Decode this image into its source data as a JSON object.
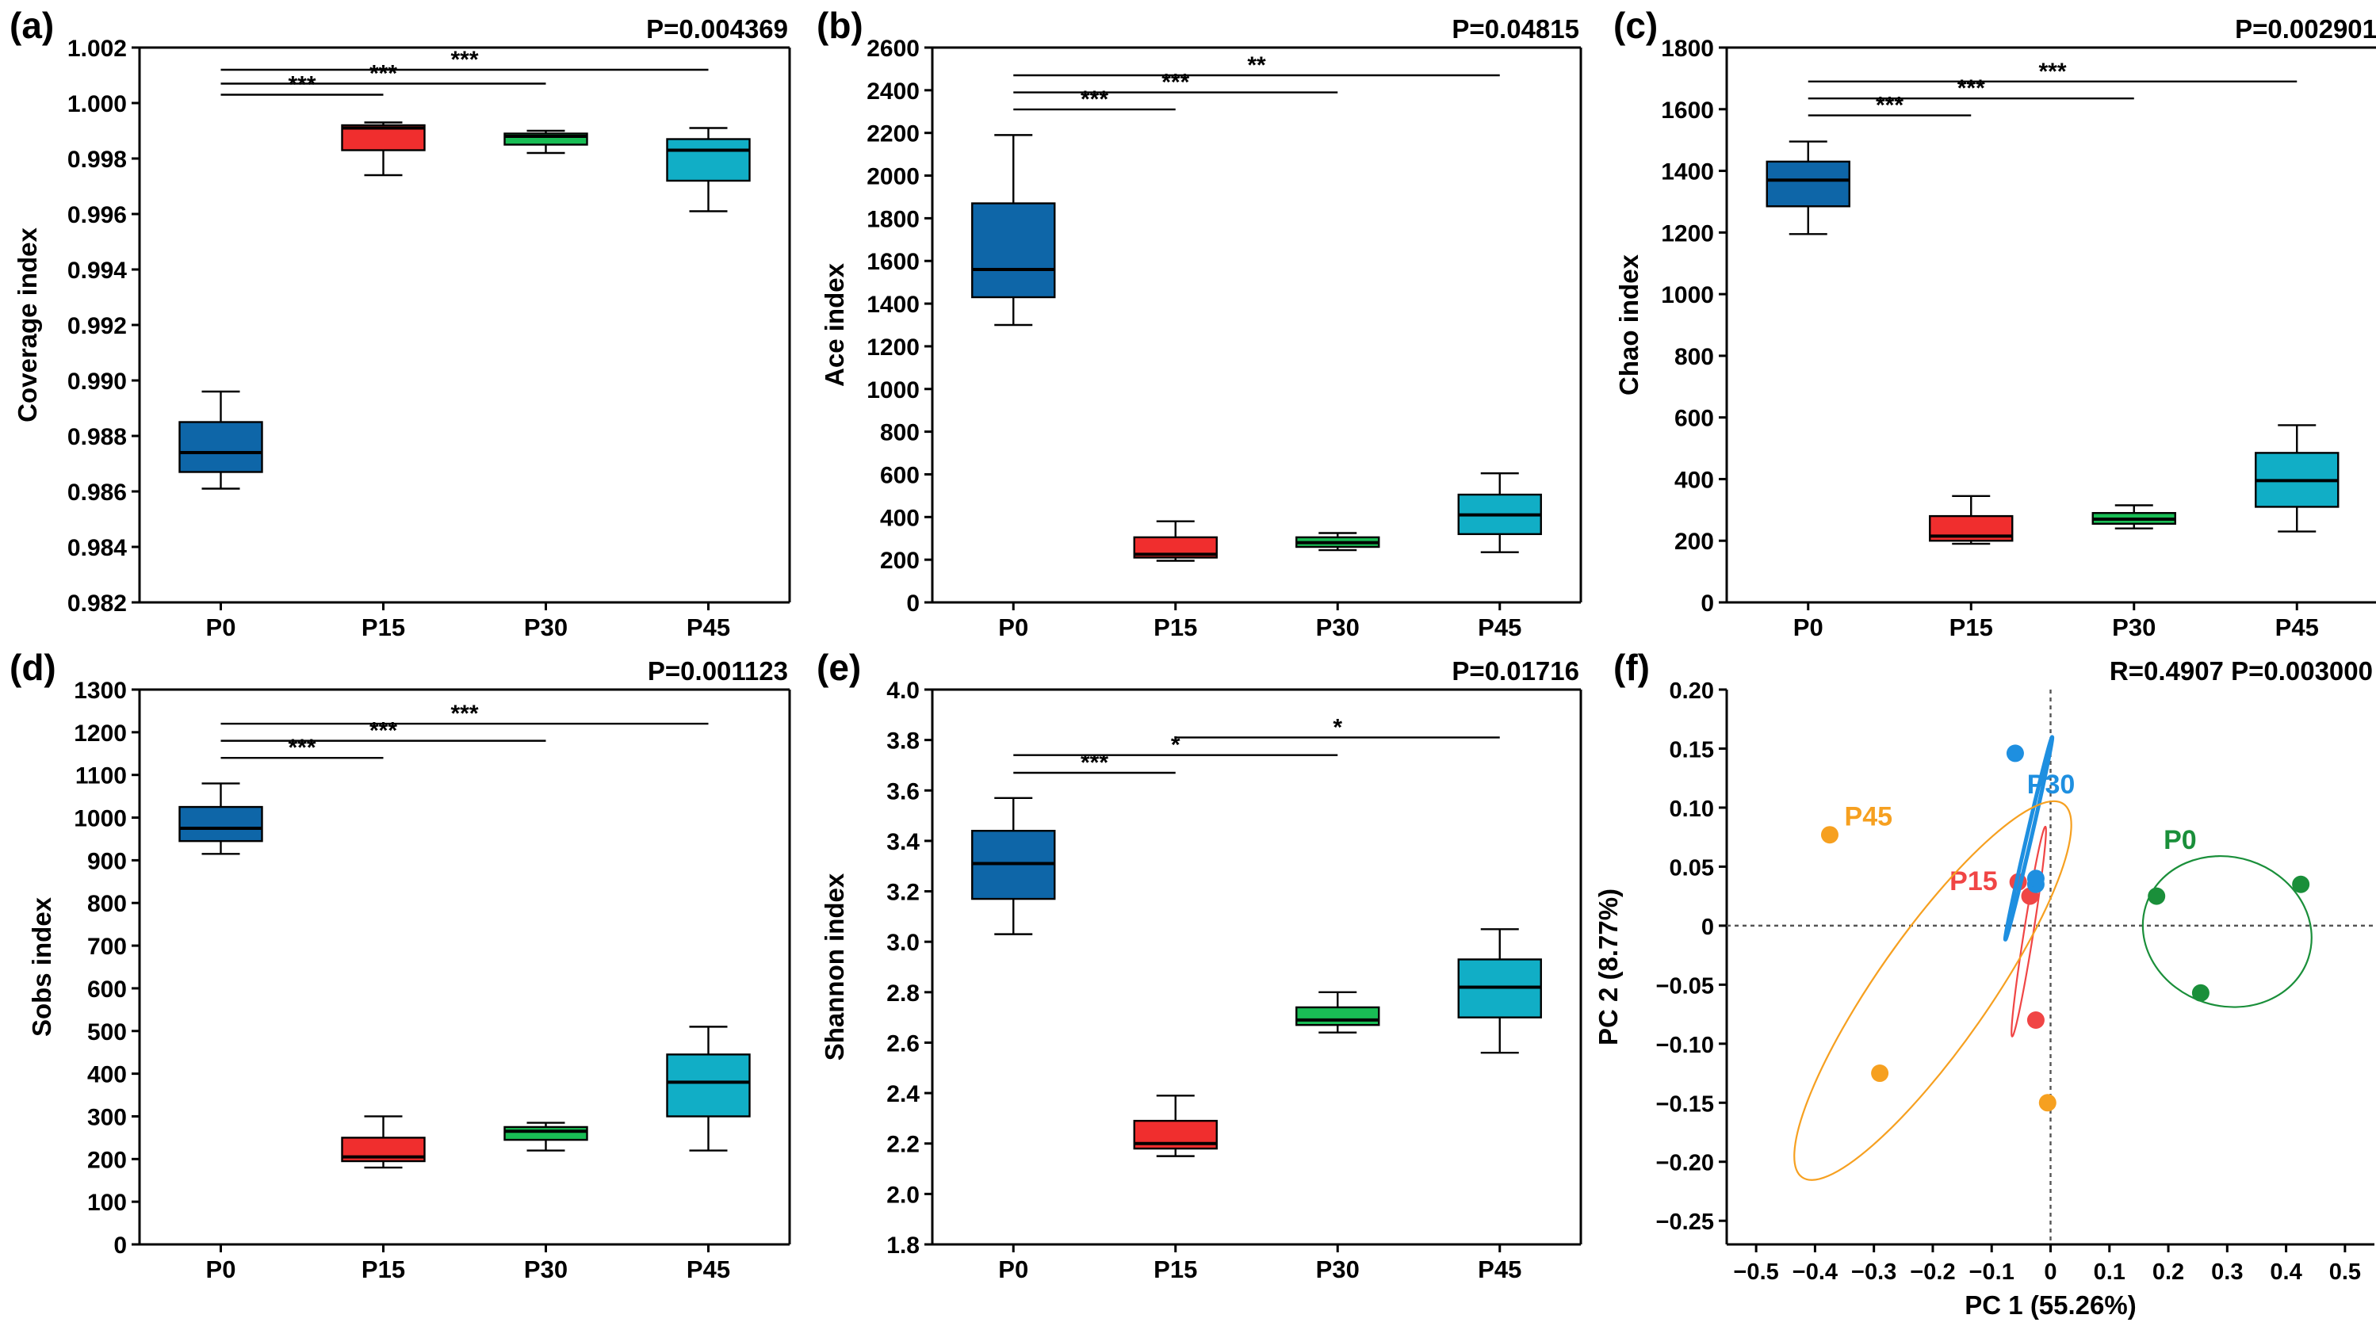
{
  "colors": {
    "P0": "#0e66a8",
    "P15": "#f02e2e",
    "P30": "#19bd55",
    "P45": "#11aec6",
    "pcoa_P0": "#1a8f3a",
    "pcoa_P15": "#f04545",
    "pcoa_P30": "#1e8fe0",
    "pcoa_P45": "#f6a020"
  },
  "chart_data": [
    {
      "type": "box",
      "panel_label": "(a)",
      "stat": "P=0.004369",
      "ylabel": "Coverage index",
      "ylim": [
        0.982,
        1.002
      ],
      "yticks": [
        0.982,
        0.984,
        0.986,
        0.988,
        0.99,
        0.992,
        0.994,
        0.996,
        0.998,
        1.0,
        1.002
      ],
      "ytick_labels": [
        "0.982",
        "0.984",
        "0.986",
        "0.988",
        "0.990",
        "0.992",
        "0.994",
        "0.996",
        "0.998",
        "1.000",
        "1.002"
      ],
      "categories": [
        "P0",
        "P15",
        "P30",
        "P45"
      ],
      "boxes": [
        {
          "min": 0.9861,
          "q1": 0.9867,
          "median": 0.9874,
          "q3": 0.9885,
          "max": 0.9896
        },
        {
          "min": 0.9974,
          "q1": 0.9983,
          "median": 0.9991,
          "q3": 0.9992,
          "max": 0.9993
        },
        {
          "min": 0.9982,
          "q1": 0.9985,
          "median": 0.9988,
          "q3": 0.9989,
          "max": 0.999
        },
        {
          "min": 0.9961,
          "q1": 0.9972,
          "median": 0.9983,
          "q3": 0.9987,
          "max": 0.9991
        }
      ],
      "significance": [
        {
          "from": "P0",
          "to": "P15",
          "y": 1.0003,
          "label": "***"
        },
        {
          "from": "P0",
          "to": "P30",
          "y": 1.0007,
          "label": "***"
        },
        {
          "from": "P0",
          "to": "P45",
          "y": 1.0012,
          "label": "***"
        }
      ]
    },
    {
      "type": "box",
      "panel_label": "(b)",
      "stat": "P=0.04815",
      "ylabel": "Ace index",
      "ylim": [
        0,
        2600
      ],
      "yticks": [
        0,
        200,
        400,
        600,
        800,
        1000,
        1200,
        1400,
        1600,
        1800,
        2000,
        2200,
        2400,
        2600
      ],
      "ytick_labels": [
        "0",
        "200",
        "400",
        "600",
        "800",
        "1000",
        "1200",
        "1400",
        "1600",
        "1800",
        "2000",
        "2200",
        "2400",
        "2600"
      ],
      "categories": [
        "P0",
        "P15",
        "P30",
        "P45"
      ],
      "boxes": [
        {
          "min": 1300,
          "q1": 1430,
          "median": 1560,
          "q3": 1870,
          "max": 2190
        },
        {
          "min": 195,
          "q1": 210,
          "median": 225,
          "q3": 305,
          "max": 380
        },
        {
          "min": 245,
          "q1": 260,
          "median": 280,
          "q3": 305,
          "max": 325
        },
        {
          "min": 235,
          "q1": 320,
          "median": 410,
          "q3": 505,
          "max": 605
        }
      ],
      "significance": [
        {
          "from": "P0",
          "to": "P15",
          "y": 2310,
          "label": "***"
        },
        {
          "from": "P0",
          "to": "P30",
          "y": 2390,
          "label": "***"
        },
        {
          "from": "P0",
          "to": "P45",
          "y": 2470,
          "label": "**"
        }
      ]
    },
    {
      "type": "box",
      "panel_label": "(c)",
      "stat": "P=0.002901",
      "ylabel": "Chao index",
      "ylim": [
        0,
        1800
      ],
      "yticks": [
        0,
        200,
        400,
        600,
        800,
        1000,
        1200,
        1400,
        1600,
        1800
      ],
      "ytick_labels": [
        "0",
        "200",
        "400",
        "600",
        "800",
        "1000",
        "1200",
        "1400",
        "1600",
        "1800"
      ],
      "categories": [
        "P0",
        "P15",
        "P30",
        "P45"
      ],
      "boxes": [
        {
          "min": 1195,
          "q1": 1285,
          "median": 1370,
          "q3": 1430,
          "max": 1495
        },
        {
          "min": 190,
          "q1": 200,
          "median": 215,
          "q3": 280,
          "max": 345
        },
        {
          "min": 240,
          "q1": 255,
          "median": 270,
          "q3": 290,
          "max": 315
        },
        {
          "min": 230,
          "q1": 310,
          "median": 395,
          "q3": 485,
          "max": 575
        }
      ],
      "significance": [
        {
          "from": "P0",
          "to": "P15",
          "y": 1580,
          "label": "***"
        },
        {
          "from": "P0",
          "to": "P30",
          "y": 1635,
          "label": "***"
        },
        {
          "from": "P0",
          "to": "P45",
          "y": 1690,
          "label": "***"
        }
      ]
    },
    {
      "type": "box",
      "panel_label": "(d)",
      "stat": "P=0.001123",
      "ylabel": "Sobs index",
      "ylim": [
        0,
        1300
      ],
      "yticks": [
        0,
        100,
        200,
        300,
        400,
        500,
        600,
        700,
        800,
        900,
        1000,
        1100,
        1200,
        1300
      ],
      "ytick_labels": [
        "0",
        "100",
        "200",
        "300",
        "400",
        "500",
        "600",
        "700",
        "800",
        "900",
        "1000",
        "1100",
        "1200",
        "1300"
      ],
      "categories": [
        "P0",
        "P15",
        "P30",
        "P45"
      ],
      "boxes": [
        {
          "min": 915,
          "q1": 945,
          "median": 975,
          "q3": 1025,
          "max": 1080
        },
        {
          "min": 180,
          "q1": 195,
          "median": 205,
          "q3": 250,
          "max": 300
        },
        {
          "min": 220,
          "q1": 245,
          "median": 265,
          "q3": 275,
          "max": 285
        },
        {
          "min": 220,
          "q1": 300,
          "median": 380,
          "q3": 445,
          "max": 510
        }
      ],
      "significance": [
        {
          "from": "P0",
          "to": "P15",
          "y": 1140,
          "label": "***"
        },
        {
          "from": "P0",
          "to": "P30",
          "y": 1180,
          "label": "***"
        },
        {
          "from": "P0",
          "to": "P45",
          "y": 1220,
          "label": "***"
        }
      ]
    },
    {
      "type": "box",
      "panel_label": "(e)",
      "stat": "P=0.01716",
      "ylabel": "Shannon index",
      "ylim": [
        1.8,
        4.0
      ],
      "yticks": [
        1.8,
        2.0,
        2.2,
        2.4,
        2.6,
        2.8,
        3.0,
        3.2,
        3.4,
        3.6,
        3.8,
        4.0
      ],
      "ytick_labels": [
        "1.8",
        "2.0",
        "2.2",
        "2.4",
        "2.6",
        "2.8",
        "3.0",
        "3.2",
        "3.4",
        "3.6",
        "3.8",
        "4.0"
      ],
      "categories": [
        "P0",
        "P15",
        "P30",
        "P45"
      ],
      "boxes": [
        {
          "min": 3.03,
          "q1": 3.17,
          "median": 3.31,
          "q3": 3.44,
          "max": 3.57
        },
        {
          "min": 2.15,
          "q1": 2.18,
          "median": 2.2,
          "q3": 2.29,
          "max": 2.39
        },
        {
          "min": 2.64,
          "q1": 2.67,
          "median": 2.69,
          "q3": 2.74,
          "max": 2.8
        },
        {
          "min": 2.56,
          "q1": 2.7,
          "median": 2.82,
          "q3": 2.93,
          "max": 3.05
        }
      ],
      "significance": [
        {
          "from": "P0",
          "to": "P15",
          "y": 3.67,
          "label": "***"
        },
        {
          "from": "P0",
          "to": "P30",
          "y": 3.74,
          "label": "*"
        },
        {
          "from": "P15",
          "to": "P45",
          "y": 3.81,
          "label": "*"
        }
      ]
    },
    {
      "type": "scatter",
      "panel_label": "(f)",
      "stat": "R=0.4907 P=0.003000",
      "xlabel": "PC 1 (55.26%)",
      "ylabel": "PC 2 (8.77%)",
      "xlim": [
        -0.55,
        0.55
      ],
      "ylim": [
        -0.27,
        0.2
      ],
      "xticks": [
        -0.5,
        -0.4,
        -0.3,
        -0.2,
        -0.1,
        0,
        0.1,
        0.2,
        0.3,
        0.4,
        0.5
      ],
      "xtick_labels": [
        "−0.5",
        "−0.4",
        "−0.3",
        "−0.2",
        "−0.1",
        "0",
        "0.1",
        "0.2",
        "0.3",
        "0.4",
        "0.5"
      ],
      "yticks": [
        -0.25,
        -0.2,
        -0.15,
        -0.1,
        -0.05,
        0,
        0.05,
        0.1,
        0.15,
        0.2
      ],
      "ytick_labels": [
        "−0.25",
        "−0.20",
        "−0.15",
        "−0.10",
        "−0.05",
        "0",
        "0.05",
        "0.10",
        "0.15",
        "0.20"
      ],
      "series": [
        {
          "name": "P0",
          "points": [
            [
              0.18,
              0.025
            ],
            [
              0.425,
              0.035
            ],
            [
              0.255,
              -0.057
            ]
          ],
          "ellipse": {
            "cx": 0.3,
            "cy": -0.005,
            "rx": 0.145,
            "ry": 0.063,
            "angle": 18
          }
        },
        {
          "name": "P15",
          "points": [
            [
              -0.055,
              0.037
            ],
            [
              -0.035,
              0.025
            ],
            [
              -0.025,
              -0.08
            ]
          ],
          "ellipse": {
            "cx": -0.037,
            "cy": -0.005,
            "rx": 0.008,
            "ry": 0.09,
            "angle": 9
          }
        },
        {
          "name": "P30",
          "points": [
            [
              -0.06,
              0.146
            ],
            [
              -0.025,
              0.035
            ],
            [
              -0.025,
              0.04
            ]
          ],
          "ellipse": {
            "cx": -0.037,
            "cy": 0.074,
            "rx": 0.004,
            "ry": 0.088,
            "angle": 13
          }
        },
        {
          "name": "P45",
          "points": [
            [
              -0.375,
              0.077
            ],
            [
              -0.29,
              -0.125
            ],
            [
              -0.005,
              -0.15
            ]
          ],
          "ellipse": {
            "cx": -0.2,
            "cy": -0.055,
            "rx": 0.095,
            "ry": 0.193,
            "angle": 35
          }
        }
      ]
    }
  ]
}
